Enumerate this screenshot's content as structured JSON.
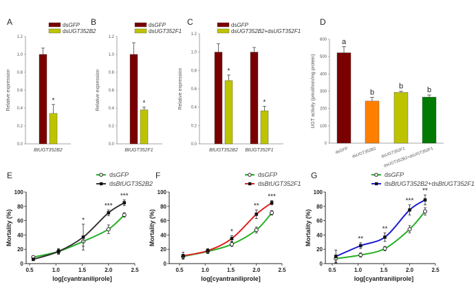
{
  "chart_data": [
    {
      "panel": "A",
      "type": "bar",
      "ylabel": "Relative expression",
      "ylim": [
        0,
        1.2
      ],
      "yticks": [
        "0.0",
        "0.2",
        "0.4",
        "0.6",
        "0.8",
        "1.0",
        "1.2"
      ],
      "categories": [
        "BtUGT352B2"
      ],
      "series": [
        {
          "name": "dsGFP",
          "color": "#7a0000",
          "values": [
            1.0
          ],
          "errors": [
            0.07
          ]
        },
        {
          "name": "dsUGT352B2",
          "color": "#bec300",
          "values": [
            0.34
          ],
          "errors": [
            0.1
          ]
        }
      ],
      "annotations": [
        [
          "",
          "*"
        ]
      ]
    },
    {
      "panel": "B",
      "type": "bar",
      "ylabel": "Relative expression",
      "ylim": [
        0,
        1.2
      ],
      "yticks": [
        "0.0",
        "0.2",
        "0.4",
        "0.6",
        "0.8",
        "1.0",
        "1.2"
      ],
      "categories": [
        "BtUGT352F1"
      ],
      "series": [
        {
          "name": "dsGFP",
          "color": "#7a0000",
          "values": [
            1.0
          ],
          "errors": [
            0.13
          ]
        },
        {
          "name": "dsUGT352F1",
          "color": "#bec300",
          "values": [
            0.38
          ],
          "errors": [
            0.03
          ]
        }
      ],
      "annotations": [
        [
          "",
          "*"
        ]
      ]
    },
    {
      "panel": "C",
      "type": "bar",
      "ylabel": "Relative expression",
      "ylim": [
        0,
        1.2
      ],
      "yticks": [
        "0.0",
        "0.2",
        "0.4",
        "0.6",
        "0.8",
        "1.0",
        "1.2"
      ],
      "categories": [
        "BtUGT352B2",
        "BtUGT352F1"
      ],
      "series": [
        {
          "name": "dsGFP",
          "color": "#7a0000",
          "values": [
            1.0,
            1.0
          ],
          "errors": [
            0.09,
            0.05
          ]
        },
        {
          "name": "dsUGT352B2+dsUGT352F1",
          "color": "#bec300",
          "values": [
            0.69,
            0.36
          ],
          "errors": [
            0.06,
            0.05
          ]
        }
      ],
      "annotations": [
        [
          "",
          "*"
        ],
        [
          "",
          "*"
        ]
      ]
    },
    {
      "panel": "D",
      "type": "bar",
      "ylabel": "UGT activity (pmol/min/mg protein)",
      "ylim": [
        0,
        600
      ],
      "yticks": [
        "0",
        "100",
        "200",
        "300",
        "400",
        "500",
        "600"
      ],
      "categories": [
        "dsGFP",
        "dsUGT352B2",
        "dsUGT352F1",
        "dsUGT352B2+dsUGT352F1"
      ],
      "values": [
        522,
        243,
        293,
        266
      ],
      "errors": [
        35,
        22,
        7,
        12
      ],
      "colors": [
        "#7a0000",
        "#ff8000",
        "#bec300",
        "#007a00"
      ],
      "letters": [
        "a",
        "b",
        "b",
        "b"
      ]
    },
    {
      "panel": "E",
      "type": "line",
      "xlabel": "log[cyantraniliprole]",
      "ylabel": "Mortality (%)",
      "xlim": [
        0.5,
        2.5
      ],
      "ylim": [
        0,
        100
      ],
      "xticks": [
        "0.5",
        "1.0",
        "1.5",
        "2.0",
        "2.5"
      ],
      "yticks": [
        "0",
        "20",
        "40",
        "60",
        "80",
        "100"
      ],
      "x": [
        0.57,
        1.05,
        1.52,
        2.0,
        2.3
      ],
      "series": [
        {
          "name": "dsGFP",
          "color": "#22b022",
          "marker": "open-circle",
          "values": [
            9,
            17,
            31,
            48,
            68
          ],
          "errors": [
            2,
            3,
            7,
            6,
            3
          ]
        },
        {
          "name": "dsBtUGT352B2",
          "color": "#333333",
          "marker": "filled-square",
          "values": [
            6,
            17,
            37,
            71,
            85
          ],
          "errors": [
            2,
            4,
            18,
            4,
            4
          ]
        }
      ],
      "significance": [
        "",
        "",
        "*",
        "***",
        "***"
      ]
    },
    {
      "panel": "F",
      "type": "line",
      "xlabel": "log[cyantraniliprole]",
      "ylabel": "Mortality (%)",
      "xlim": [
        0.5,
        2.5
      ],
      "ylim": [
        0,
        100
      ],
      "xticks": [
        "0.5",
        "1.0",
        "1.5",
        "2.0",
        "2.5"
      ],
      "yticks": [
        "0",
        "20",
        "40",
        "60",
        "80",
        "100"
      ],
      "x": [
        0.57,
        1.05,
        1.52,
        2.0,
        2.3
      ],
      "series": [
        {
          "name": "dsGFP",
          "color": "#22b022",
          "marker": "open-circle",
          "values": [
            10,
            17,
            27,
            47,
            71
          ],
          "errors": [
            3,
            3,
            3,
            4,
            3
          ]
        },
        {
          "name": "dsBtUGT352F1",
          "color": "#e02020",
          "marker": "filled-square",
          "values": [
            11,
            18,
            35,
            69,
            85
          ],
          "errors": [
            5,
            3,
            4,
            6,
            3
          ]
        }
      ],
      "significance": [
        "",
        "",
        "*",
        "**",
        "***"
      ]
    },
    {
      "panel": "G",
      "type": "line",
      "xlabel": "log[cyantraniliprole]",
      "ylabel": "Mortality (%)",
      "xlim": [
        0.5,
        2.5
      ],
      "ylim": [
        0,
        100
      ],
      "xticks": [
        "0.5",
        "1.0",
        "1.5",
        "2.0",
        "2.5"
      ],
      "yticks": [
        "0",
        "20",
        "40",
        "60",
        "80",
        "100"
      ],
      "x": [
        0.57,
        1.05,
        1.52,
        2.0,
        2.3
      ],
      "series": [
        {
          "name": "dsGFP",
          "color": "#22b022",
          "marker": "open-circle",
          "values": [
            7,
            12,
            21,
            48,
            73
          ],
          "errors": [
            5,
            3,
            3,
            5,
            5
          ]
        },
        {
          "name": "dsBtUGT352B2+dsBtUGT352F1",
          "color": "#1a1ad0",
          "marker": "filled-square",
          "values": [
            10,
            25,
            37,
            75,
            89
          ],
          "errors": [
            9,
            4,
            6,
            7,
            7
          ]
        }
      ],
      "significance": [
        "",
        "**",
        "**",
        "***",
        "**"
      ]
    }
  ]
}
